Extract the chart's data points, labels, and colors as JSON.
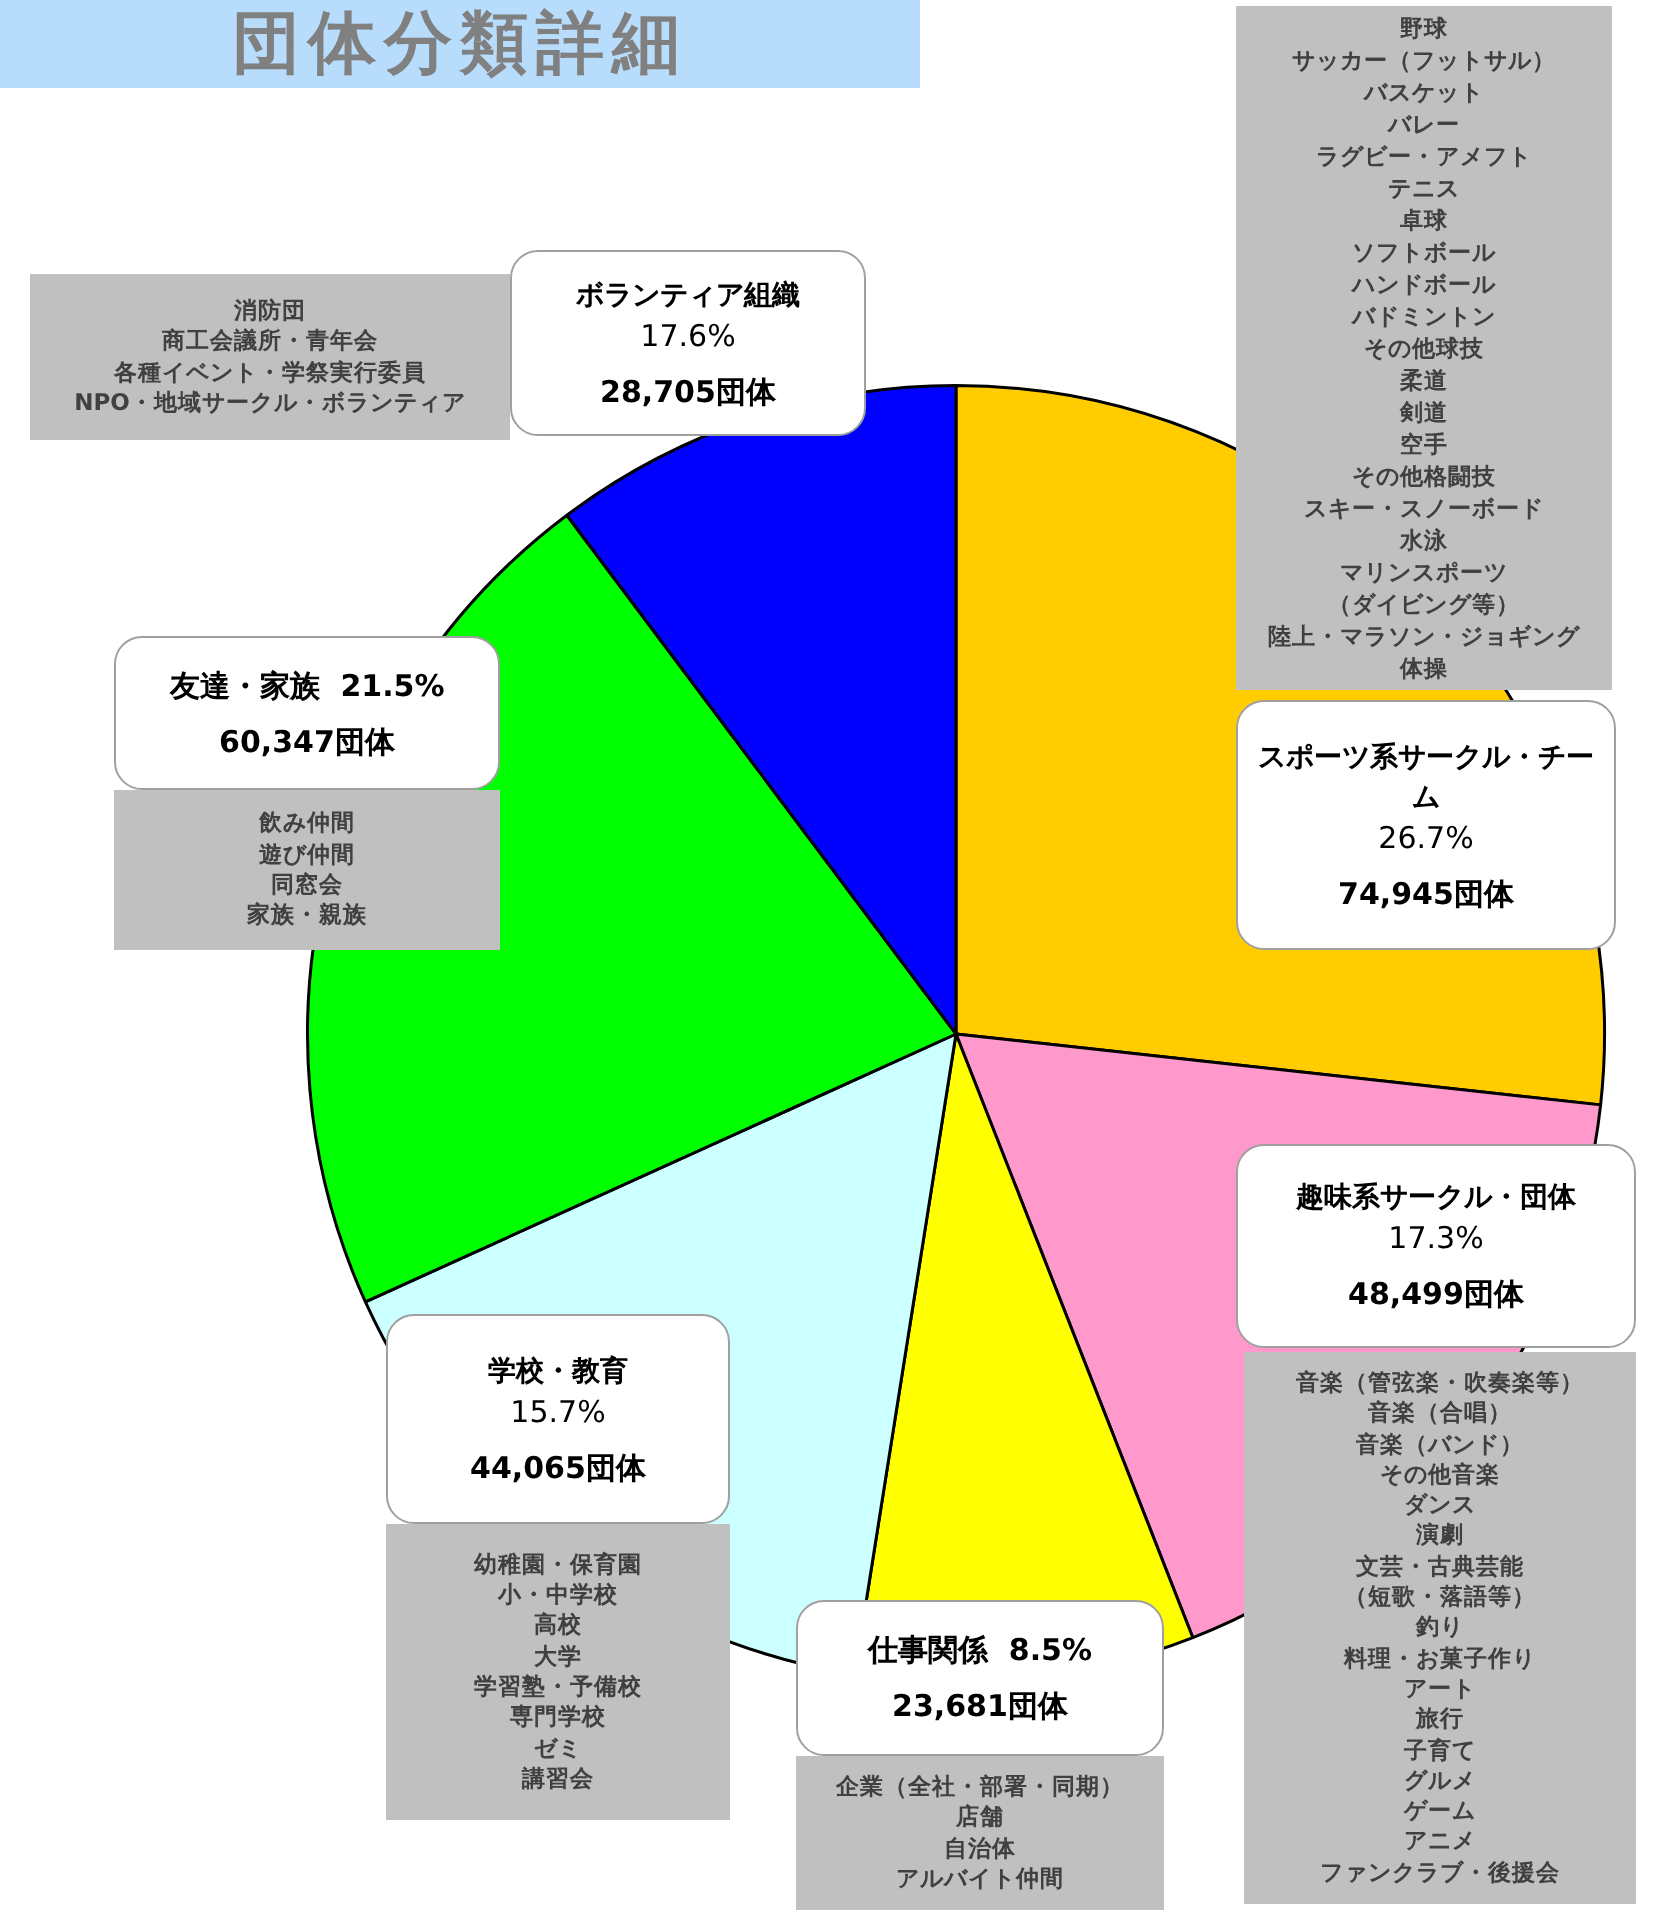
{
  "chart_data": {
    "type": "pie",
    "title": "団体分類詳細",
    "categories": [
      "スポーツ系サークル・チーム",
      "趣味系サークル・団体",
      "仕事関係",
      "学校・教育",
      "友達・家族",
      "ボランティア組織"
    ],
    "values": [
      74945,
      48499,
      23681,
      44065,
      60347,
      28705
    ],
    "value_labels": [
      "26.7%\n74,945団体",
      "17.3%\n48,499団体",
      "8.5%\n23,681団体",
      "15.7%\n44,065団体",
      "21.5%\n60,347団体",
      "17.6%\n28,705団体"
    ],
    "colors": [
      "#ffcc00",
      "#ff99cc",
      "#ffff00",
      "#ccffff",
      "#00ff00",
      "#0000ff"
    ],
    "annotations": [
      "野球",
      "サッカー（フットサル）",
      "バスケット",
      "バレー",
      "ラグビー・アメフト",
      "テニス",
      "卓球",
      "ソフトボール",
      "ハンドボール",
      "バドミントン",
      "その他球技",
      "柔道",
      "剣道",
      "空手",
      "その他格闘技",
      "スキー・スノーボード",
      "水泳",
      "マリンスポーツ",
      "（ダイビング等）",
      "陸上・マラソン・ジョギング",
      "体操",
      "音楽（管弦楽・吹奏楽等）",
      "音楽（合唱）",
      "音楽（バンド）",
      "その他音楽",
      "ダンス",
      "演劇",
      "文芸・古典芸能",
      "（短歌・落語等）",
      "釣り",
      "料理・お菓子作り",
      "アート",
      "旅行",
      "子育て",
      "グルメ",
      "ゲーム",
      "アニメ",
      "ファンクラブ・後援会",
      "企業（全社・部署・同期）",
      "店舗",
      "自治体",
      "アルバイト仲間",
      "幼稚園・保育園",
      "小・中学校",
      "高校",
      "大学",
      "学習塾・予備校",
      "専門学校",
      "ゼミ",
      "講習会",
      "飲み仲間",
      "遊び仲間",
      "同窓会",
      "家族・親族",
      "消防団",
      "商工会議所・青年会",
      "各種イベント・学祭実行委員",
      "NPO・地域サークル・ボランティア"
    ],
    "legend": false
  }
}
